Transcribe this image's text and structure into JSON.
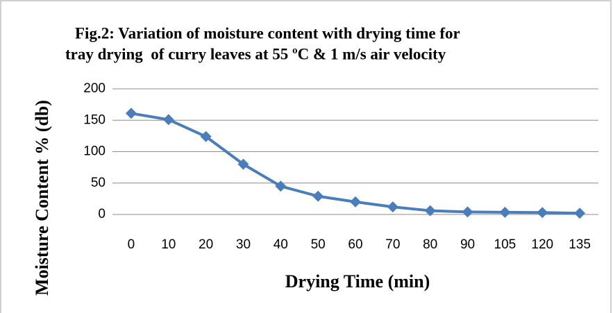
{
  "chart_data": {
    "type": "line",
    "title": [
      "Fig.2: Variation of moisture content with drying time for",
      "tray drying  of curry leaves at 55 ºC & 1 m/s air velocity"
    ],
    "x_label": "Drying Time (min)",
    "y_label": "Moisture Content  % (db)",
    "categories": [
      "0",
      "10",
      "20",
      "30",
      "40",
      "50",
      "60",
      "70",
      "80",
      "90",
      "105",
      "120",
      "135"
    ],
    "values": [
      161,
      151,
      124,
      80,
      45,
      29,
      20,
      12,
      6,
      4,
      3.5,
      3,
      2
    ],
    "color": "#4a7ebb",
    "ylim": [
      0,
      200
    ],
    "yticks": [
      0,
      50,
      100,
      150,
      200
    ],
    "grid": true
  }
}
